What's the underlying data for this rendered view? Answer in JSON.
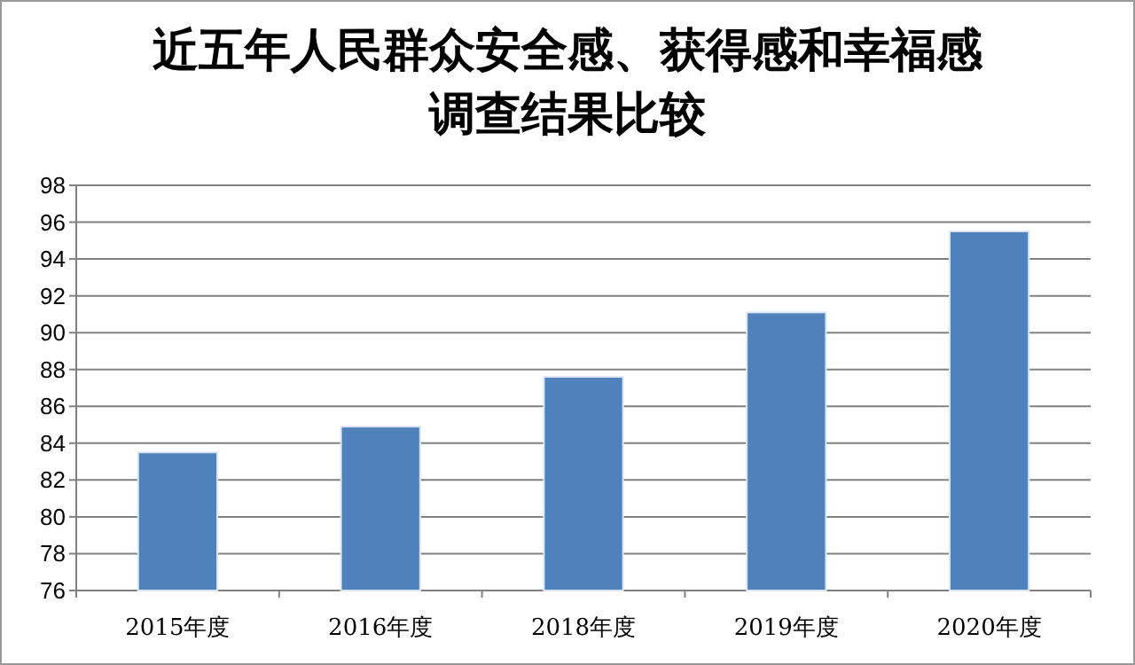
{
  "chart_data": {
    "type": "bar",
    "title": "近五年人民群众安全感、获得感和幸福感调查结果比较",
    "categories": [
      "2015年度",
      "2016年度",
      "2018年度",
      "2019年度",
      "2020年度"
    ],
    "values": [
      83.5,
      84.9,
      87.6,
      91.1,
      95.5
    ],
    "color": "#4f81bd",
    "ylim": [
      76,
      98
    ],
    "yticks": [
      76,
      78,
      80,
      82,
      84,
      86,
      88,
      90,
      92,
      94,
      96,
      98
    ],
    "grid": "y"
  }
}
